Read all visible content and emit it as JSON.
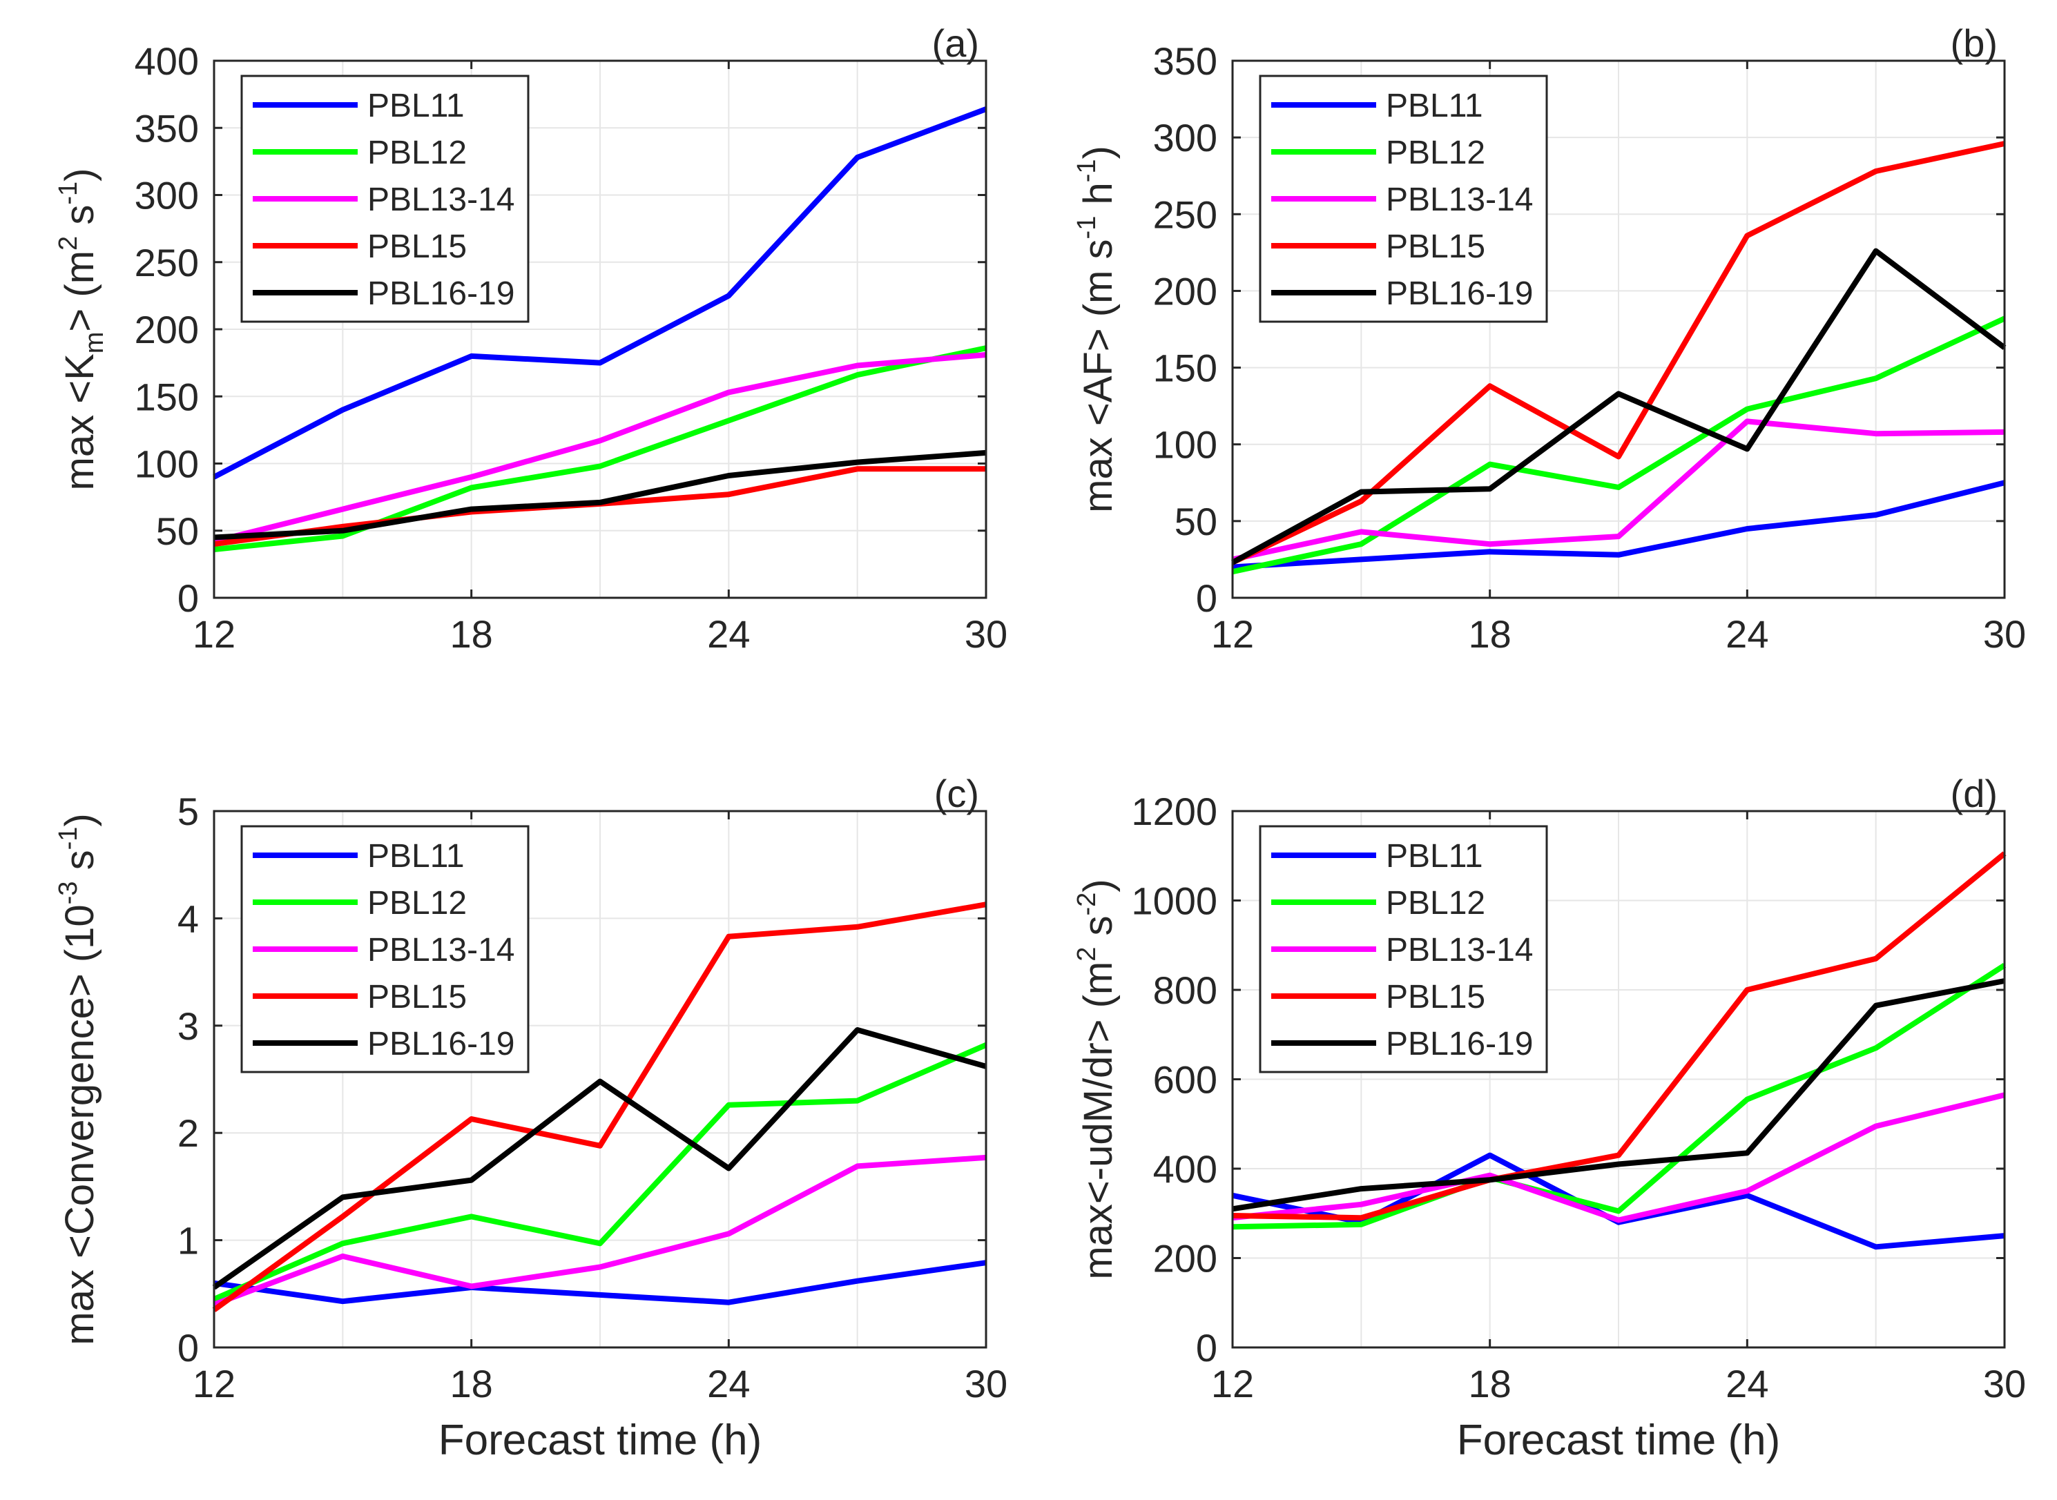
{
  "figure": {
    "xlabel": "Forecast time (h)"
  },
  "colors": {
    "PBL11": "#0000ff",
    "PBL12": "#00ff00",
    "PBL13-14": "#ff00ff",
    "PBL15": "#ff0000",
    "PBL16-19": "#000000"
  },
  "chart_data": [
    {
      "type": "line",
      "panel": "(a)",
      "ylabel": {
        "main": "max <K",
        "sub": "m",
        "rest": "> (m",
        "sup1": "2",
        "mid": " s",
        "sup2": "-1",
        "end": ")"
      },
      "xlabel": "",
      "xlim": [
        12,
        30
      ],
      "ylim": [
        0,
        400
      ],
      "xticks": [
        12,
        18,
        24,
        30
      ],
      "yticks": [
        0,
        50,
        100,
        150,
        200,
        250,
        300,
        350,
        400
      ],
      "x": [
        12,
        15,
        18,
        21,
        24,
        27,
        30
      ],
      "legend": [
        "PBL11",
        "PBL12",
        "PBL13-14",
        "PBL15",
        "PBL16-19"
      ],
      "legend_position": "top-left",
      "series": [
        {
          "name": "PBL11",
          "values": [
            90,
            140,
            180,
            175,
            225,
            328,
            364
          ]
        },
        {
          "name": "PBL12",
          "values": [
            36,
            46,
            82,
            98,
            132,
            166,
            186
          ]
        },
        {
          "name": "PBL13-14",
          "values": [
            42,
            66,
            90,
            117,
            153,
            173,
            181
          ]
        },
        {
          "name": "PBL15",
          "values": [
            40,
            53,
            64,
            70,
            77,
            96,
            96
          ]
        },
        {
          "name": "PBL16-19",
          "values": [
            45,
            50,
            66,
            71,
            91,
            101,
            108
          ]
        }
      ]
    },
    {
      "type": "line",
      "panel": "(b)",
      "ylabel": {
        "main": "max <AF> (m s",
        "sup1": "-1",
        "mid": " h",
        "sup2": "-1",
        "end": ")"
      },
      "xlabel": "",
      "xlim": [
        12,
        30
      ],
      "ylim": [
        0,
        350
      ],
      "xticks": [
        12,
        18,
        24,
        30
      ],
      "yticks": [
        0,
        50,
        100,
        150,
        200,
        250,
        300,
        350
      ],
      "x": [
        12,
        15,
        18,
        21,
        24,
        27,
        30
      ],
      "legend": [
        "PBL11",
        "PBL12",
        "PBL13-14",
        "PBL15",
        "PBL16-19"
      ],
      "legend_position": "top-left",
      "series": [
        {
          "name": "PBL11",
          "values": [
            20,
            25,
            30,
            28,
            45,
            54,
            75
          ]
        },
        {
          "name": "PBL12",
          "values": [
            17,
            35,
            87,
            72,
            123,
            143,
            182
          ]
        },
        {
          "name": "PBL13-14",
          "values": [
            25,
            43,
            35,
            40,
            115,
            107,
            108
          ]
        },
        {
          "name": "PBL15",
          "values": [
            23,
            63,
            138,
            92,
            236,
            278,
            296
          ]
        },
        {
          "name": "PBL16-19",
          "values": [
            23,
            69,
            71,
            133,
            97,
            226,
            163
          ]
        }
      ]
    },
    {
      "type": "line",
      "panel": "(c)",
      "ylabel": {
        "main": "max <Convergence> (10",
        "sup1": "-3",
        "mid": " s",
        "sup2": "-1",
        "end": ")"
      },
      "xlabel": "Forecast time (h)",
      "xlim": [
        12,
        30
      ],
      "ylim": [
        0,
        5
      ],
      "xticks": [
        12,
        18,
        24,
        30
      ],
      "yticks": [
        0,
        1,
        2,
        3,
        4,
        5
      ],
      "x": [
        12,
        15,
        18,
        21,
        24,
        27,
        30
      ],
      "legend": [
        "PBL11",
        "PBL12",
        "PBL13-14",
        "PBL15",
        "PBL16-19"
      ],
      "legend_position": "top-left",
      "series": [
        {
          "name": "PBL11",
          "values": [
            0.6,
            0.43,
            0.56,
            0.49,
            0.42,
            0.62,
            0.79
          ]
        },
        {
          "name": "PBL12",
          "values": [
            0.45,
            0.97,
            1.22,
            0.97,
            2.26,
            2.3,
            2.82
          ]
        },
        {
          "name": "PBL13-14",
          "values": [
            0.4,
            0.85,
            0.57,
            0.75,
            1.06,
            1.69,
            1.77
          ]
        },
        {
          "name": "PBL15",
          "values": [
            0.35,
            1.22,
            2.13,
            1.88,
            3.83,
            3.92,
            4.13
          ]
        },
        {
          "name": "PBL16-19",
          "values": [
            0.56,
            1.4,
            1.56,
            2.48,
            1.67,
            2.96,
            2.62
          ]
        }
      ]
    },
    {
      "type": "line",
      "panel": "(d)",
      "ylabel": {
        "main": "max<-udM/dr> (m",
        "sup1": "2",
        "mid": " s",
        "sup2": "-2",
        "end": ")"
      },
      "xlabel": "Forecast time (h)",
      "xlim": [
        12,
        30
      ],
      "ylim": [
        0,
        1200
      ],
      "xticks": [
        12,
        18,
        24,
        30
      ],
      "yticks": [
        0,
        200,
        400,
        600,
        800,
        1000,
        1200
      ],
      "x": [
        12,
        15,
        18,
        21,
        24,
        27,
        30
      ],
      "legend": [
        "PBL11",
        "PBL12",
        "PBL13-14",
        "PBL15",
        "PBL16-19"
      ],
      "legend_position": "top-left",
      "series": [
        {
          "name": "PBL11",
          "values": [
            340,
            280,
            430,
            280,
            340,
            225,
            250
          ]
        },
        {
          "name": "PBL12",
          "values": [
            270,
            275,
            380,
            305,
            555,
            670,
            855
          ]
        },
        {
          "name": "PBL13-14",
          "values": [
            290,
            320,
            385,
            285,
            350,
            495,
            565
          ]
        },
        {
          "name": "PBL15",
          "values": [
            295,
            290,
            375,
            430,
            800,
            870,
            1105
          ]
        },
        {
          "name": "PBL16-19",
          "values": [
            310,
            355,
            375,
            410,
            435,
            765,
            820
          ]
        }
      ]
    }
  ]
}
